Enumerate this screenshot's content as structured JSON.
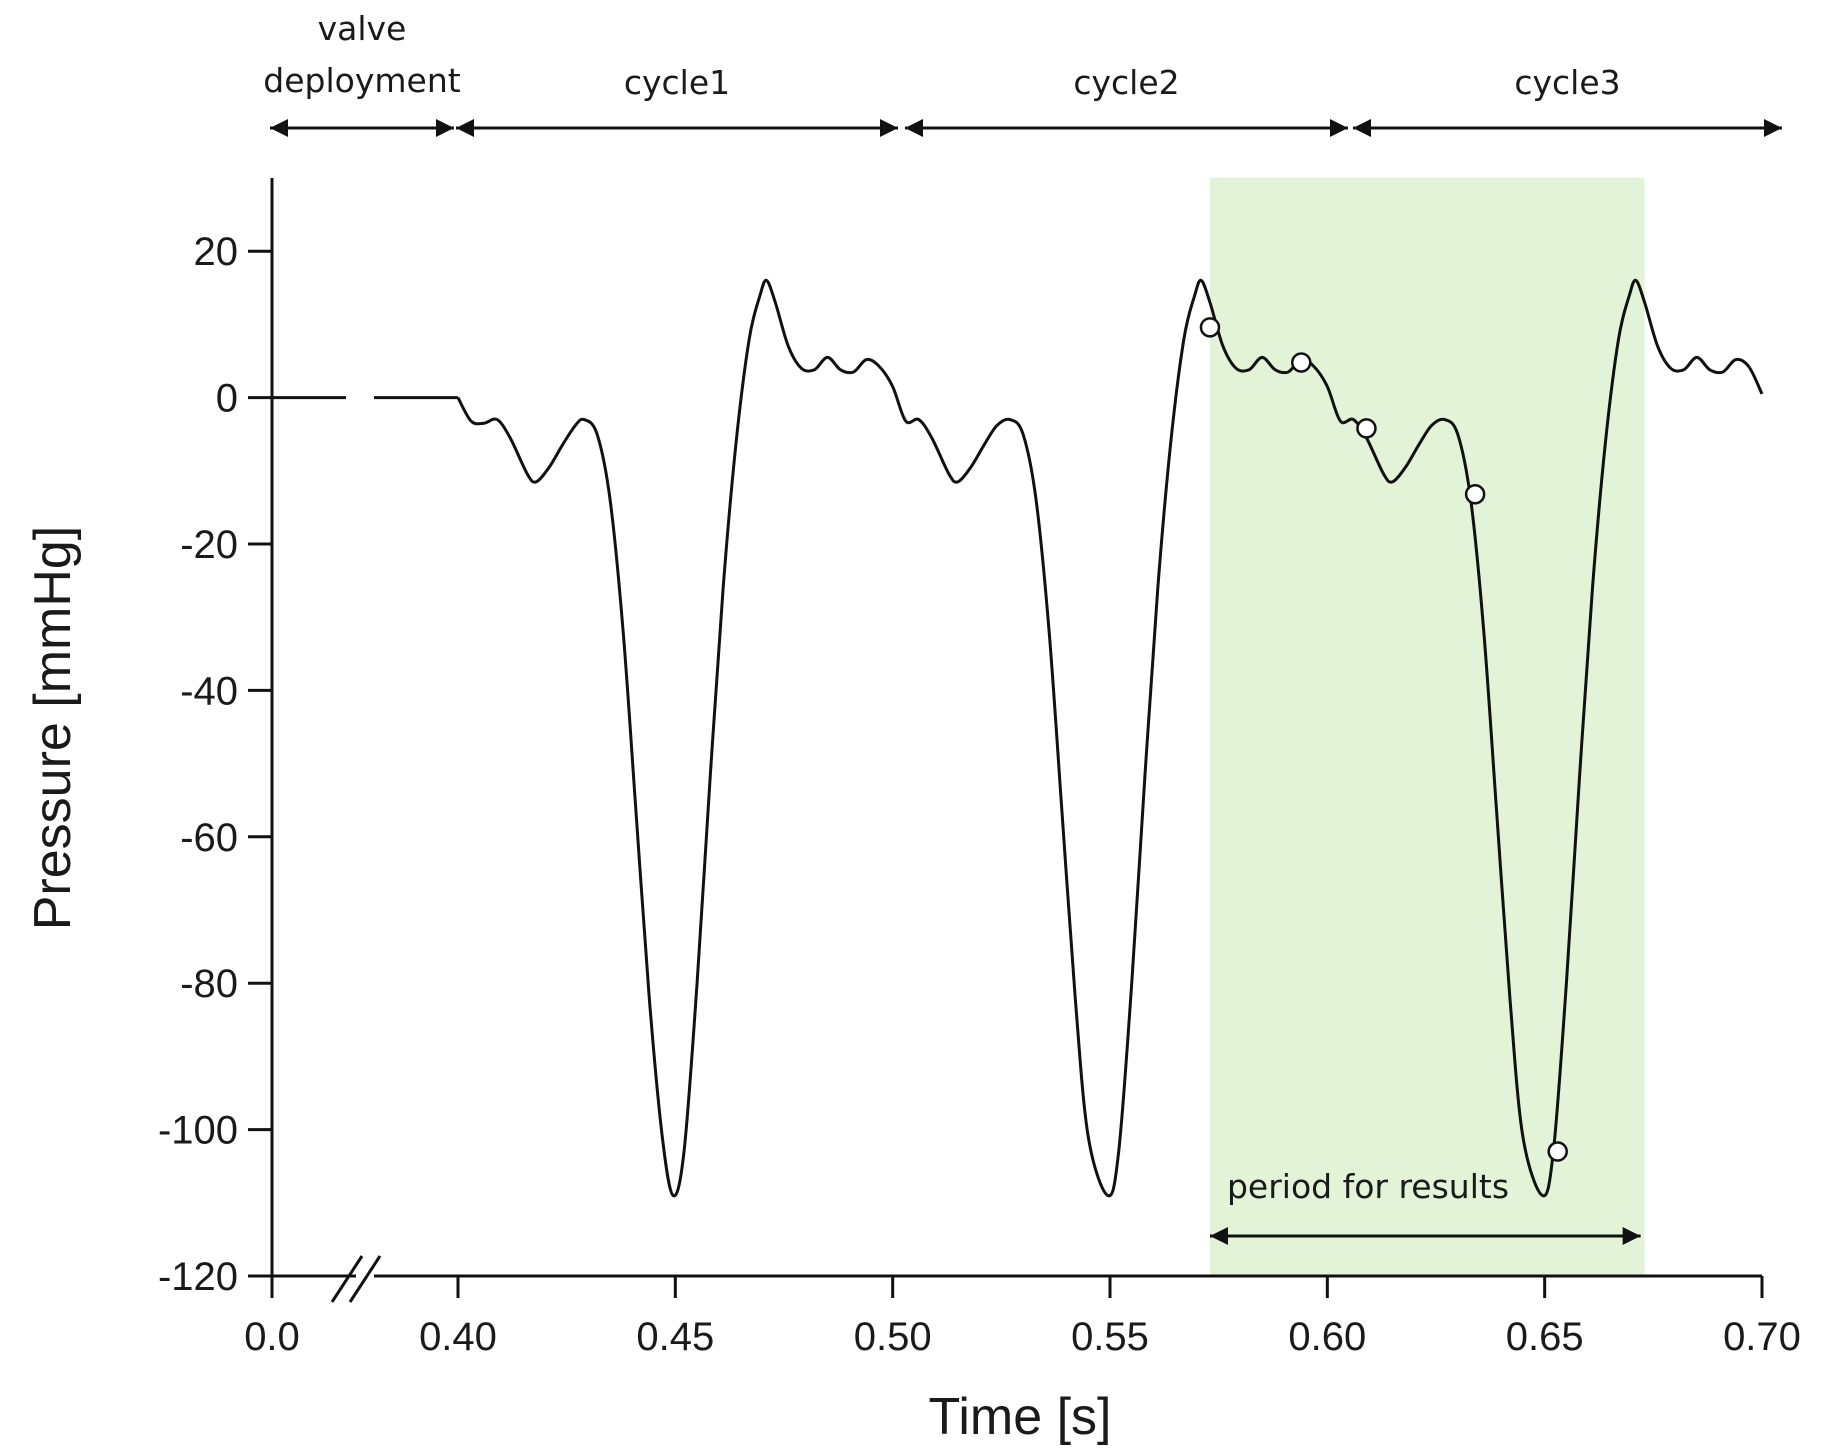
{
  "chart_data": {
    "type": "line",
    "title": "",
    "xlabel": "Time [s]",
    "ylabel": "Pressure [mmHg]",
    "ylim": [
      -120,
      30
    ],
    "x_axis": {
      "broken": true,
      "break_between": [
        0.0,
        0.4
      ],
      "ticks": [
        {
          "value": 0.0,
          "label": "0.0"
        },
        {
          "value": 0.4,
          "label": "0.40"
        },
        {
          "value": 0.45,
          "label": "0.45"
        },
        {
          "value": 0.5,
          "label": "0.50"
        },
        {
          "value": 0.55,
          "label": "0.55"
        },
        {
          "value": 0.6,
          "label": "0.60"
        },
        {
          "value": 0.65,
          "label": "0.65"
        },
        {
          "value": 0.7,
          "label": "0.70"
        }
      ]
    },
    "y_ticks": [
      {
        "value": 20,
        "label": "20"
      },
      {
        "value": 0,
        "label": "0"
      },
      {
        "value": -20,
        "label": "-20"
      },
      {
        "value": -40,
        "label": "-40"
      },
      {
        "value": -60,
        "label": "-60"
      },
      {
        "value": -80,
        "label": "-80"
      },
      {
        "value": -100,
        "label": "-100"
      },
      {
        "value": -120,
        "label": "-120"
      }
    ],
    "grid": false,
    "series": [
      {
        "color": "#111111",
        "points": [
          [
            0.0,
            0
          ],
          [
            0.4,
            0
          ],
          [
            0.403,
            -3.2
          ],
          [
            0.406,
            -3.5
          ],
          [
            0.409,
            -3.0
          ],
          [
            0.412,
            -5.5
          ],
          [
            0.416,
            -10.5
          ],
          [
            0.418,
            -11.5
          ],
          [
            0.421,
            -9.5
          ],
          [
            0.424,
            -6.5
          ],
          [
            0.427,
            -3.8
          ],
          [
            0.429,
            -3.0
          ],
          [
            0.432,
            -5.0
          ],
          [
            0.435,
            -14
          ],
          [
            0.438,
            -32
          ],
          [
            0.441,
            -57
          ],
          [
            0.444,
            -82
          ],
          [
            0.447,
            -101
          ],
          [
            0.4495,
            -109
          ],
          [
            0.452,
            -103
          ],
          [
            0.455,
            -80
          ],
          [
            0.458,
            -52
          ],
          [
            0.461,
            -26
          ],
          [
            0.464,
            -6
          ],
          [
            0.467,
            8
          ],
          [
            0.4695,
            14
          ],
          [
            0.471,
            16
          ],
          [
            0.473,
            13
          ],
          [
            0.476,
            7
          ],
          [
            0.479,
            4
          ],
          [
            0.482,
            3.8
          ],
          [
            0.485,
            5.5
          ],
          [
            0.488,
            3.8
          ],
          [
            0.491,
            3.5
          ],
          [
            0.494,
            5.2
          ],
          [
            0.497,
            4.2
          ],
          [
            0.5,
            1.5
          ],
          [
            0.503,
            -3.2
          ],
          [
            0.506,
            -3.0
          ],
          [
            0.509,
            -5.5
          ],
          [
            0.513,
            -10.5
          ],
          [
            0.515,
            -11.5
          ],
          [
            0.518,
            -9.5
          ],
          [
            0.521,
            -6.5
          ],
          [
            0.524,
            -3.8
          ],
          [
            0.527,
            -3.0
          ],
          [
            0.53,
            -5.0
          ],
          [
            0.533,
            -14
          ],
          [
            0.536,
            -32
          ],
          [
            0.539,
            -57
          ],
          [
            0.542,
            -82
          ],
          [
            0.545,
            -101
          ],
          [
            0.5495,
            -109
          ],
          [
            0.552,
            -103
          ],
          [
            0.555,
            -80
          ],
          [
            0.558,
            -52
          ],
          [
            0.561,
            -26
          ],
          [
            0.564,
            -6
          ],
          [
            0.567,
            8
          ],
          [
            0.5695,
            14
          ],
          [
            0.571,
            16
          ],
          [
            0.573,
            13
          ],
          [
            0.576,
            7
          ],
          [
            0.579,
            4
          ],
          [
            0.582,
            3.8
          ],
          [
            0.585,
            5.5
          ],
          [
            0.588,
            3.8
          ],
          [
            0.591,
            3.5
          ],
          [
            0.594,
            5.2
          ],
          [
            0.597,
            4.2
          ],
          [
            0.6,
            1.5
          ],
          [
            0.603,
            -3.2
          ],
          [
            0.606,
            -3.0
          ],
          [
            0.609,
            -5.5
          ],
          [
            0.613,
            -10.5
          ],
          [
            0.615,
            -11.5
          ],
          [
            0.618,
            -9.5
          ],
          [
            0.621,
            -6.5
          ],
          [
            0.624,
            -3.8
          ],
          [
            0.627,
            -3.0
          ],
          [
            0.63,
            -5.0
          ],
          [
            0.633,
            -14
          ],
          [
            0.636,
            -32
          ],
          [
            0.639,
            -57
          ],
          [
            0.642,
            -82
          ],
          [
            0.645,
            -101
          ],
          [
            0.6495,
            -109
          ],
          [
            0.652,
            -103
          ],
          [
            0.655,
            -80
          ],
          [
            0.658,
            -52
          ],
          [
            0.661,
            -26
          ],
          [
            0.664,
            -6
          ],
          [
            0.667,
            8
          ],
          [
            0.6695,
            14
          ],
          [
            0.671,
            16
          ],
          [
            0.673,
            13
          ],
          [
            0.676,
            7
          ],
          [
            0.679,
            4
          ],
          [
            0.682,
            3.8
          ],
          [
            0.685,
            5.5
          ],
          [
            0.688,
            3.8
          ],
          [
            0.691,
            3.5
          ],
          [
            0.694,
            5.2
          ],
          [
            0.697,
            4.2
          ],
          [
            0.7,
            0.5
          ]
        ]
      }
    ],
    "markers": [
      {
        "x": 0.573,
        "y": 9.6
      },
      {
        "x": 0.594,
        "y": 4.8
      },
      {
        "x": 0.609,
        "y": -4.2
      },
      {
        "x": 0.634,
        "y": -13.2
      },
      {
        "x": 0.653,
        "y": -103
      }
    ],
    "highlight": {
      "x_start": 0.573,
      "x_end": 0.673,
      "color": "#e2f3d7",
      "label": "period for results"
    },
    "segments": [
      {
        "label_lines": [
          "valve",
          "deployment"
        ],
        "x_start": 0.0,
        "x_end": 0.4
      },
      {
        "label_lines": [
          "cycle1"
        ],
        "x_start": 0.4,
        "x_end": 0.5
      },
      {
        "label_lines": [
          "cycle2"
        ],
        "x_start": 0.5,
        "x_end": 0.6
      },
      {
        "label_lines": [
          "cycle3"
        ],
        "x_start": 0.6,
        "x_end": 0.7
      }
    ],
    "line_color": "#111111",
    "marker_fill": "#ffffff"
  }
}
